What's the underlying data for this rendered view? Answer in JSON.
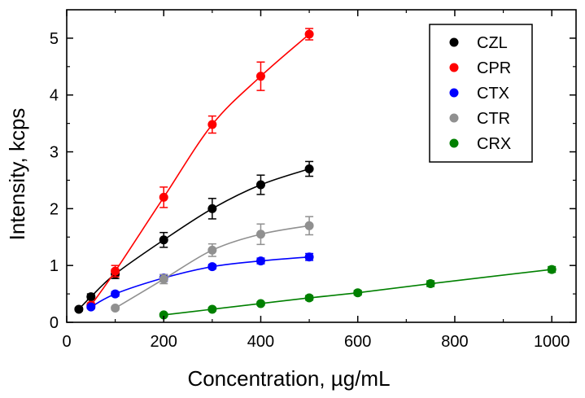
{
  "chart_data": {
    "type": "scatter",
    "xlabel": "Concentration, µg/mL",
    "ylabel": "Intensity, kcps",
    "xlim": [
      0,
      1050
    ],
    "ylim": [
      0,
      5.5
    ],
    "xticks": [
      "0",
      "200",
      "400",
      "600",
      "800",
      "1000"
    ],
    "yticks": [
      "0",
      "1",
      "2",
      "3",
      "4",
      "5"
    ],
    "legend_position": "top-right",
    "grid": false,
    "series": [
      {
        "name": "CZL",
        "color": "#000000",
        "x": [
          25,
          50,
          100,
          200,
          300,
          400,
          500
        ],
        "y": [
          0.23,
          0.45,
          0.85,
          1.45,
          2.0,
          2.42,
          2.7
        ],
        "err": [
          0.03,
          0.05,
          0.08,
          0.13,
          0.18,
          0.17,
          0.13
        ]
      },
      {
        "name": "CPR",
        "color": "#ff0000",
        "x": [
          50,
          100,
          200,
          300,
          400,
          500
        ],
        "y": [
          0.3,
          0.9,
          2.2,
          3.48,
          4.33,
          5.07
        ],
        "err": [
          0.04,
          0.1,
          0.18,
          0.15,
          0.25,
          0.1
        ]
      },
      {
        "name": "CTX",
        "color": "#0000ff",
        "x": [
          50,
          100,
          200,
          300,
          400,
          500
        ],
        "y": [
          0.27,
          0.5,
          0.78,
          0.98,
          1.08,
          1.15
        ],
        "err": [
          0.03,
          0.04,
          0.06,
          0.04,
          0.05,
          0.06
        ]
      },
      {
        "name": "CTR",
        "color": "#909090",
        "x": [
          100,
          200,
          300,
          400,
          500
        ],
        "y": [
          0.25,
          0.76,
          1.27,
          1.55,
          1.7
        ],
        "err": [
          0.03,
          0.08,
          0.11,
          0.18,
          0.16
        ]
      },
      {
        "name": "CRX",
        "color": "#008000",
        "x": [
          200,
          300,
          400,
          500,
          600,
          750,
          1000
        ],
        "y": [
          0.13,
          0.23,
          0.33,
          0.43,
          0.52,
          0.68,
          0.93
        ],
        "err": [
          0.03,
          0.03,
          0.03,
          0.04,
          0.04,
          0.05,
          0.05
        ]
      }
    ]
  }
}
